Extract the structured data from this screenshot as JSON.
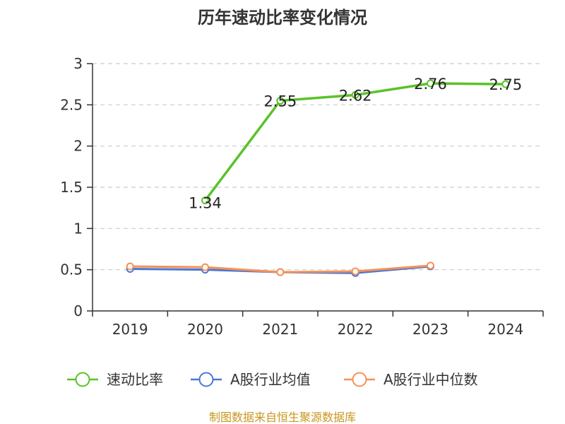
{
  "chart_data": {
    "type": "line",
    "title": "历年速动比率变化情况",
    "categories": [
      "2019",
      "2020",
      "2021",
      "2022",
      "2023",
      "2024"
    ],
    "ylim": [
      0,
      3
    ],
    "yticks": [
      0,
      0.5,
      1,
      1.5,
      2,
      2.5,
      3
    ],
    "ytick_labels": [
      "0",
      "0.5",
      "1",
      "1.5",
      "2",
      "2.5",
      "3"
    ],
    "grid": true,
    "legend_position": "bottom",
    "series": [
      {
        "name": "速动比率",
        "color": "#5bc229",
        "values": [
          null,
          1.34,
          2.55,
          2.62,
          2.76,
          2.75
        ],
        "labels": [
          "",
          "1.34",
          "2.55",
          "2.62",
          "2.76",
          "2.75"
        ]
      },
      {
        "name": "A股行业均值",
        "color": "#4a78d4",
        "values": [
          0.51,
          0.5,
          0.47,
          0.46,
          0.54,
          null
        ]
      },
      {
        "name": "A股行业中位数",
        "color": "#f59157",
        "values": [
          0.54,
          0.53,
          0.47,
          0.48,
          0.55,
          null
        ]
      }
    ]
  },
  "footer": {
    "source": "制图数据来自恒生聚源数据库"
  }
}
